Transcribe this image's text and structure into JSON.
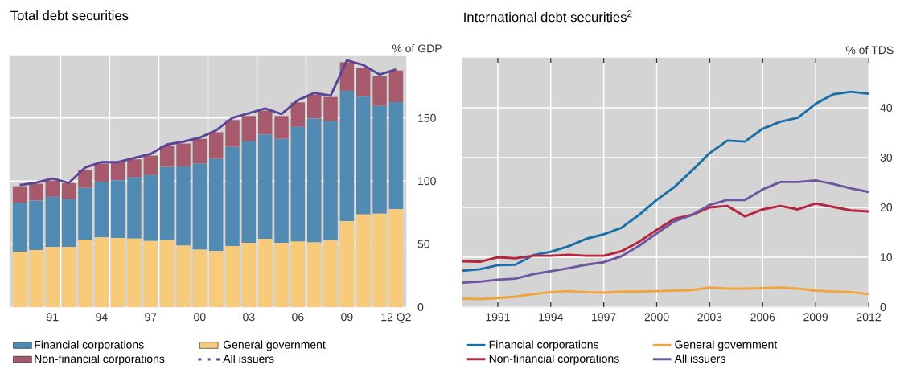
{
  "chart_data": [
    {
      "type": "bar",
      "title": "Total debt securities",
      "ylabel": "% of GDP",
      "stacked": true,
      "grid": true,
      "legend": "bottom",
      "categories": [
        null,
        null,
        "91",
        null,
        null,
        "94",
        null,
        null,
        "97",
        null,
        null,
        "00",
        null,
        null,
        "03",
        null,
        null,
        "06",
        null,
        null,
        "09",
        null,
        null,
        "12 Q2"
      ],
      "series": [
        {
          "name": "General government",
          "color": "#f7cb79",
          "values": [
            44.0,
            45.2,
            47.7,
            47.7,
            53.5,
            55.3,
            54.8,
            54.4,
            52.5,
            53.1,
            48.8,
            45.6,
            44.5,
            48.4,
            51.0,
            54.2,
            51.0,
            52.0,
            51.4,
            53.1,
            68.2,
            73.5,
            74.2,
            77.6
          ]
        },
        {
          "name": "Financial corporations",
          "color": "#518ab2",
          "values": [
            38.8,
            39.3,
            39.8,
            37.9,
            41.1,
            44.1,
            45.6,
            48.4,
            52.2,
            58.1,
            62.8,
            68.2,
            73.1,
            78.7,
            80.6,
            82.8,
            82.5,
            91.0,
            98.1,
            94.6,
            103.4,
            93.4,
            85.4,
            85.0
          ]
        },
        {
          "name": "Non-financial corporations",
          "color": "#a65a6b",
          "values": [
            13.1,
            13.3,
            12.9,
            12.7,
            14.2,
            14.4,
            14.4,
            14.4,
            15.5,
            16.8,
            18.1,
            19.7,
            21.1,
            21.3,
            20.0,
            18.9,
            18.1,
            19.4,
            18.9,
            19.0,
            22.6,
            23.0,
            23.6,
            25.1
          ]
        },
        {
          "name": "All issuers",
          "type": "line",
          "color": "#5c4596",
          "values": [
            96.8,
            98.7,
            102,
            98.5,
            110.8,
            115,
            115,
            118.3,
            121.5,
            129,
            131.2,
            134.4,
            140.2,
            150.1,
            153.8,
            157.6,
            153.1,
            164.1,
            169.9,
            167.7,
            195.7,
            192,
            184.5,
            188.6
          ]
        }
      ],
      "ylim": [
        0,
        199
      ],
      "yticks": [
        0,
        50,
        100,
        150
      ]
    },
    {
      "type": "line",
      "title": "International debt securities$^{2}$",
      "ylabel": "% of TDS",
      "grid": true,
      "legend": "bottom",
      "x": [
        1989,
        1990,
        1991,
        1992,
        1993,
        1994,
        1995,
        1996,
        1997,
        1998,
        1999,
        2000,
        2001,
        2002,
        2003,
        2004,
        2005,
        2006,
        2007,
        2008,
        2009,
        2010,
        2011,
        2012
      ],
      "series": [
        {
          "name": "Financial corporations",
          "color": "#1b6fa8",
          "values": [
            7.3,
            7.6,
            8.4,
            8.5,
            10.4,
            11.1,
            12.2,
            13.7,
            14.6,
            15.9,
            18.5,
            21.5,
            24.1,
            27.4,
            30.9,
            33.4,
            33.2,
            35.8,
            37.2,
            38,
            40.8,
            42.7,
            43.2,
            42.8
          ]
        },
        {
          "name": "General government",
          "color": "#f2a43a",
          "values": [
            1.7,
            1.6,
            1.8,
            2.1,
            2.6,
            3,
            3.2,
            3,
            2.9,
            3.1,
            3.1,
            3.2,
            3.3,
            3.4,
            3.9,
            3.7,
            3.7,
            3.8,
            3.9,
            3.7,
            3.3,
            3.1,
            3,
            2.6
          ]
        },
        {
          "name": "Non-financial corporations",
          "color": "#b5253e",
          "values": [
            9.2,
            9.1,
            10,
            9.8,
            10.3,
            10.3,
            10.5,
            10.3,
            10.3,
            11.2,
            13.1,
            15.5,
            17.7,
            18.5,
            20,
            20.3,
            18.2,
            19.6,
            20.3,
            19.6,
            20.8,
            20.1,
            19.4,
            19.2
          ]
        },
        {
          "name": "All issuers",
          "color": "#6e57a0",
          "values": [
            4.9,
            5.1,
            5.5,
            5.7,
            6.6,
            7.2,
            7.8,
            8.5,
            9,
            10.2,
            12.3,
            14.8,
            17.2,
            18.5,
            20.5,
            21.5,
            21.5,
            23.6,
            25.1,
            25.1,
            25.4,
            24.7,
            23.8,
            23.1
          ]
        }
      ],
      "xlim": [
        1989,
        2012
      ],
      "xticks": [
        1991,
        1994,
        1997,
        2000,
        2003,
        2006,
        2009,
        2012
      ],
      "ylim": [
        0,
        50
      ],
      "yticks": [
        0,
        10,
        20,
        30,
        40
      ]
    }
  ]
}
